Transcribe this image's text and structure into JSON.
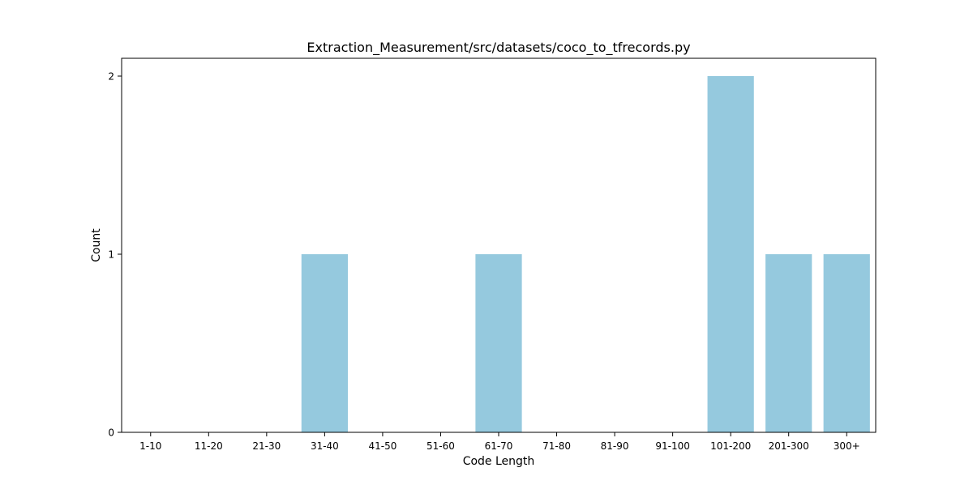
{
  "chart_data": {
    "type": "bar",
    "title": "Extraction_Measurement/src/datasets/coco_to_tfrecords.py",
    "xlabel": "Code Length",
    "ylabel": "Count",
    "categories": [
      "1-10",
      "11-20",
      "21-30",
      "31-40",
      "41-50",
      "51-60",
      "61-70",
      "71-80",
      "81-90",
      "91-100",
      "101-200",
      "201-300",
      "300+"
    ],
    "values": [
      0,
      0,
      0,
      1,
      0,
      0,
      1,
      0,
      0,
      0,
      2,
      1,
      1
    ],
    "yticks": [
      0,
      1,
      2
    ],
    "ylim": [
      0,
      2.1
    ],
    "bar_color": "#95c9de",
    "grid": false,
    "legend": "none"
  }
}
